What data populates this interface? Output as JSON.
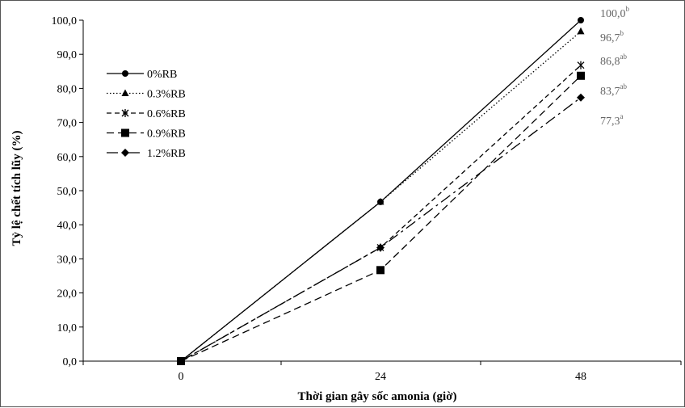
{
  "chart_data": {
    "type": "line",
    "title": "",
    "xlabel": "Thời gian gây sốc amonia (giờ)",
    "ylabel": "Tỷ lệ chết tích lũy (%)",
    "x": [
      0,
      24,
      48
    ],
    "x_tick_labels": [
      "0",
      "24",
      "48"
    ],
    "ylim": [
      0,
      100
    ],
    "y_ticks": [
      0,
      10,
      20,
      30,
      40,
      50,
      60,
      70,
      80,
      90,
      100
    ],
    "y_tick_labels": [
      "0,0",
      "10,0",
      "20,0",
      "30,0",
      "40,0",
      "50,0",
      "60,0",
      "70,0",
      "80,0",
      "90,0",
      "100,0"
    ],
    "grid": false,
    "legend_position": "top-left",
    "series": [
      {
        "name": "0%RB",
        "values": [
          0,
          46.7,
          100.0
        ],
        "marker": "circle",
        "dash": "solid",
        "end_label": "100,0",
        "end_sup": "b"
      },
      {
        "name": "0.3%RB",
        "values": [
          0,
          46.7,
          96.7
        ],
        "marker": "triangle",
        "dash": "dotted",
        "end_label": "96,7",
        "end_sup": "b"
      },
      {
        "name": "0.6%RB",
        "values": [
          0,
          33.3,
          86.8
        ],
        "marker": "star",
        "dash": "dashed",
        "end_label": "86,8",
        "end_sup": "ab"
      },
      {
        "name": "0.9%RB",
        "values": [
          0,
          26.7,
          83.7
        ],
        "marker": "square",
        "dash": "longdash",
        "end_label": "83,7",
        "end_sup": "ab"
      },
      {
        "name": "1.2%RB",
        "values": [
          0,
          33.3,
          77.3
        ],
        "marker": "diamond",
        "dash": "dashdot",
        "end_label": "77,3",
        "end_sup": "a"
      }
    ]
  }
}
